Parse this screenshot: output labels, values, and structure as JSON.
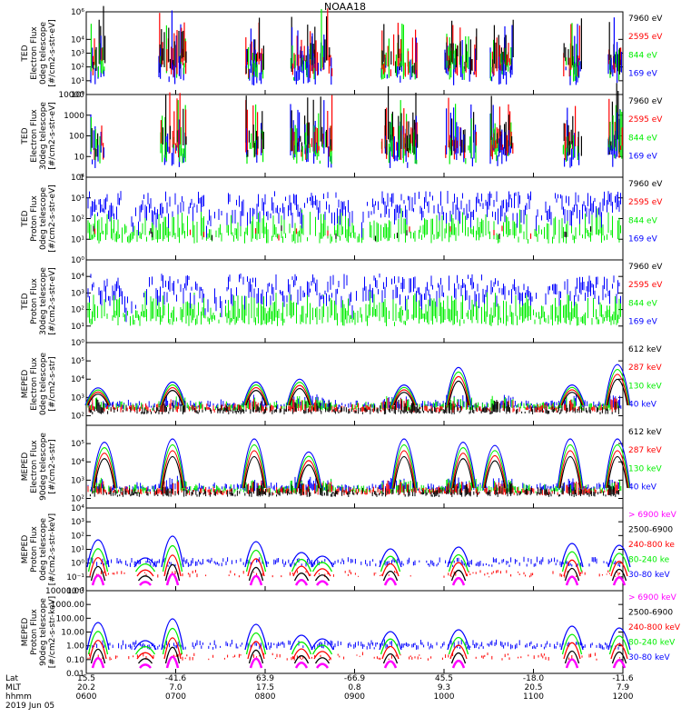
{
  "title": "NOAA18",
  "colors": {
    "black": "#000000",
    "red": "#ff0000",
    "green": "#00ee00",
    "blue": "#0000ff",
    "magenta": "#ff00ff"
  },
  "chart_data": [
    {
      "type": "scatter",
      "id": "ted-e-0deg",
      "ylabel": [
        "TED",
        "Electron Flux",
        "0deg telescope",
        "[#/cm2-s-str-eV]"
      ],
      "yscale": "log",
      "ylim": [
        1,
        1000000
      ],
      "yticks": [
        {
          "v": 1000000,
          "label": "10⁶"
        },
        {
          "v": 10000,
          "label": "10⁴"
        },
        {
          "v": 1000,
          "label": "10³"
        },
        {
          "v": 100,
          "label": "10²"
        },
        {
          "v": 10,
          "label": "10¹"
        },
        {
          "v": 1,
          "label": "10⁰"
        }
      ],
      "legend": [
        {
          "label": "7960 eV",
          "color": "#000000"
        },
        {
          "label": "2595 eV",
          "color": "#ff0000"
        },
        {
          "label": "844 eV",
          "color": "#00ee00"
        },
        {
          "label": "169 eV",
          "color": "#0000ff"
        }
      ],
      "style": "electron-ted"
    },
    {
      "type": "scatter",
      "id": "ted-e-30deg",
      "ylabel": [
        "TED",
        "Electron Flux",
        "30deg telescope",
        "[#/cm2-s-str-eV]"
      ],
      "yscale": "log",
      "ylim": [
        1,
        10000
      ],
      "yticks": [
        {
          "v": 10000,
          "label": "10000"
        },
        {
          "v": 1000,
          "label": "1000"
        },
        {
          "v": 100,
          "label": "100"
        },
        {
          "v": 10,
          "label": "10"
        },
        {
          "v": 1,
          "label": "1"
        }
      ],
      "legend": [
        {
          "label": "7960 eV",
          "color": "#000000"
        },
        {
          "label": "2595 eV",
          "color": "#ff0000"
        },
        {
          "label": "844 eV",
          "color": "#00ee00"
        },
        {
          "label": "169 eV",
          "color": "#0000ff"
        }
      ],
      "style": "electron-ted"
    },
    {
      "type": "line",
      "id": "ted-p-0deg",
      "ylabel": [
        "TED",
        "Proton Flux",
        "0deg telescope",
        "[#/cm2-s-str-eV]"
      ],
      "yscale": "log",
      "ylim": [
        1,
        10000
      ],
      "yticks": [
        {
          "v": 10000,
          "label": "10⁴"
        },
        {
          "v": 1000,
          "label": "10³"
        },
        {
          "v": 100,
          "label": "10²"
        },
        {
          "v": 10,
          "label": "10¹"
        },
        {
          "v": 1,
          "label": "10⁰"
        }
      ],
      "legend": [
        {
          "label": "7960 eV",
          "color": "#000000"
        },
        {
          "label": "2595 eV",
          "color": "#ff0000"
        },
        {
          "label": "844 eV",
          "color": "#00ee00"
        },
        {
          "label": "169 eV",
          "color": "#0000ff"
        }
      ],
      "style": "proton-ted"
    },
    {
      "type": "line",
      "id": "ted-p-30deg",
      "ylabel": [
        "TED",
        "Proton Flux",
        "30deg telescope",
        "[#/cm2-s-str-eV]"
      ],
      "yscale": "log",
      "ylim": [
        1,
        100000
      ],
      "yticks": [
        {
          "v": 10000,
          "label": "10⁴"
        },
        {
          "v": 1000,
          "label": "10³"
        },
        {
          "v": 100,
          "label": "10²"
        },
        {
          "v": 10,
          "label": "10¹"
        },
        {
          "v": 1,
          "label": "10⁰"
        }
      ],
      "legend": [
        {
          "label": "7960 eV",
          "color": "#000000"
        },
        {
          "label": "2595 eV",
          "color": "#ff0000"
        },
        {
          "label": "844 eV",
          "color": "#00ee00"
        },
        {
          "label": "169 eV",
          "color": "#0000ff"
        }
      ],
      "style": "proton-ted-30"
    },
    {
      "type": "line",
      "id": "meped-e-0deg",
      "ylabel": [
        "MEPED",
        "Electron Flux",
        "0deg telescope",
        "[#/cm2-s-str]"
      ],
      "yscale": "log",
      "ylim": [
        30,
        1000000
      ],
      "yticks": [
        {
          "v": 100000,
          "label": "10⁵"
        },
        {
          "v": 10000,
          "label": "10⁴"
        },
        {
          "v": 1000,
          "label": "10³"
        },
        {
          "v": 100,
          "label": "10²"
        }
      ],
      "legend": [
        {
          "label": "612 keV",
          "color": "#000000"
        },
        {
          "label": "287 keV",
          "color": "#ff0000"
        },
        {
          "label": "130 keV",
          "color": "#00ee00"
        },
        {
          "label": "40 keV",
          "color": "#0000ff"
        }
      ],
      "style": "meped-e0"
    },
    {
      "type": "line",
      "id": "meped-e-90deg",
      "ylabel": [
        "MEPED",
        "Electron Flux",
        "90deg telescope",
        "[#/cm2-s-str]"
      ],
      "yscale": "log",
      "ylim": [
        30,
        1000000
      ],
      "yticks": [
        {
          "v": 100000,
          "label": "10⁵"
        },
        {
          "v": 10000,
          "label": "10⁴"
        },
        {
          "v": 1000,
          "label": "10³"
        },
        {
          "v": 100,
          "label": "10²"
        }
      ],
      "legend": [
        {
          "label": "612 keV",
          "color": "#000000"
        },
        {
          "label": "287 keV",
          "color": "#ff0000"
        },
        {
          "label": "130 keV",
          "color": "#00ee00"
        },
        {
          "label": "40 keV",
          "color": "#0000ff"
        }
      ],
      "style": "meped-e90"
    },
    {
      "type": "line",
      "id": "meped-p-0deg",
      "ylabel": [
        "MEPED",
        "Proton Flux",
        "0deg telescope",
        "[#/cm2-s-str-keV]"
      ],
      "yscale": "log",
      "ylim": [
        0.01,
        10000
      ],
      "yticks": [
        {
          "v": 10000,
          "label": "10⁴"
        },
        {
          "v": 1000,
          "label": "10³"
        },
        {
          "v": 100,
          "label": "10²"
        },
        {
          "v": 10,
          "label": "10¹"
        },
        {
          "v": 1,
          "label": "10⁰"
        },
        {
          "v": 0.1,
          "label": "10⁻¹"
        },
        {
          "v": 0.01,
          "label": "10⁻²"
        }
      ],
      "legend": [
        {
          "label": "> 6900 keV",
          "color": "#ff00ff"
        },
        {
          "label": "2500-6900",
          "color": "#000000"
        },
        {
          "label": "240-800 ke",
          "color": "#ff0000"
        },
        {
          "label": "80-240 ke",
          "color": "#00ee00"
        },
        {
          "label": "30-80 keV",
          "color": "#0000ff"
        }
      ],
      "style": "meped-p0"
    },
    {
      "type": "line",
      "id": "meped-p-90deg",
      "ylabel": [
        "MEPED",
        "Proton Flux",
        "90deg telescope",
        "[#/cm2-s-str-keV]"
      ],
      "yscale": "log",
      "ylim": [
        0.01,
        10000
      ],
      "yticks": [
        {
          "v": 10000,
          "label": "10000.00"
        },
        {
          "v": 1000,
          "label": "1000.00"
        },
        {
          "v": 100,
          "label": "100.00"
        },
        {
          "v": 10,
          "label": "10.00"
        },
        {
          "v": 1,
          "label": "1.00"
        },
        {
          "v": 0.1,
          "label": "0.10"
        },
        {
          "v": 0.01,
          "label": "0.01"
        }
      ],
      "legend": [
        {
          "label": "> 6900 keV",
          "color": "#ff00ff"
        },
        {
          "label": "2500-6900",
          "color": "#000000"
        },
        {
          "label": "240-800 keV",
          "color": "#ff0000"
        },
        {
          "label": "80-240 keV",
          "color": "#00ee00"
        },
        {
          "label": "30-80 keV",
          "color": "#0000ff"
        }
      ],
      "style": "meped-p90"
    }
  ],
  "x_axis": {
    "xlim": [
      "0600",
      "1200"
    ],
    "row_labels": [
      "Lat",
      "MLT",
      "hhmm"
    ],
    "ticks": [
      {
        "hhmm": "0600",
        "lat": "15.5",
        "mlt": "20.2"
      },
      {
        "hhmm": "0700",
        "lat": "-41.6",
        "mlt": "7.0"
      },
      {
        "hhmm": "0800",
        "lat": "63.9",
        "mlt": "17.5"
      },
      {
        "hhmm": "0900",
        "lat": "-66.9",
        "mlt": "0.8"
      },
      {
        "hhmm": "1000",
        "lat": "45.5",
        "mlt": "9.3"
      },
      {
        "hhmm": "1100",
        "lat": "-18.0",
        "mlt": "20.5"
      },
      {
        "hhmm": "1200",
        "lat": "-11.6",
        "mlt": "7.9"
      }
    ],
    "date": "2019 Jun 05"
  }
}
